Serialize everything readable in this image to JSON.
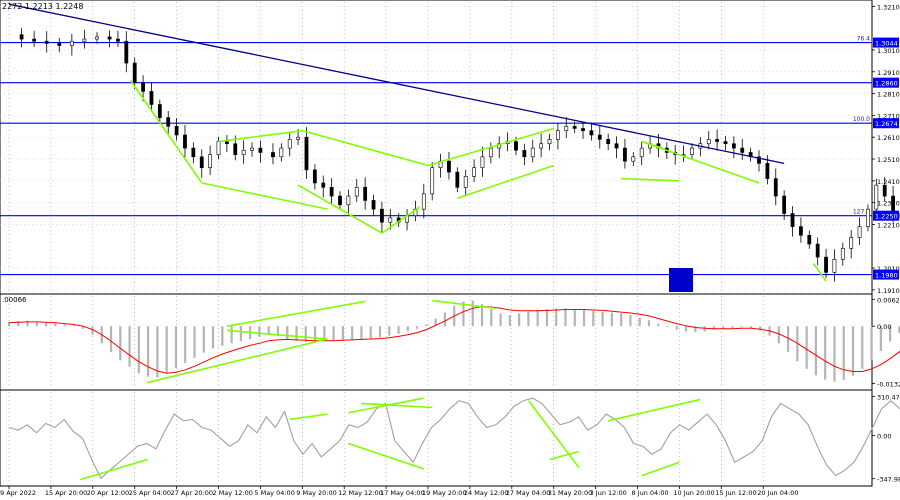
{
  "header": {
    "ohlc_text": "2272 1.2213 1.2248"
  },
  "price_axis": {
    "ticks": [
      "1.3210",
      "1.3010",
      "1.2910",
      "1.2810",
      "1.2710",
      "1.2610",
      "1.2510",
      "1.2410",
      "1.2310",
      "1.2210",
      "1.2010",
      "1.1910"
    ],
    "level_badges": [
      "1.3044",
      "1.2860",
      "1.2674",
      "1.2250",
      "1.1980"
    ]
  },
  "macd_axis": {
    "ticks": [
      "0.00628",
      "0.00",
      "-0.01323"
    ],
    "header": ".00066"
  },
  "cci_axis": {
    "ticks": [
      "310.4756",
      "0.00",
      "-347.9814"
    ]
  },
  "time_labels": [
    "9 Apr 2022",
    "15 Apr 20:00",
    "20 Apr 12:00",
    "25 Apr 04:00",
    "27 Apr 20:00",
    "2 May 12:00",
    "5 May 04:00",
    "9 May 20:00",
    "12 May 12:00",
    "17 May 04:00",
    "19 May 20:00",
    "24 May 12:00",
    "27 May 04:00",
    "31 May 20:00",
    "3 Jun 12:00",
    "8 Jun 04:00",
    "10 Jun 20:00",
    "15 Jun 12:00",
    "20 Jun 04:00"
  ],
  "colors": {
    "level": "#0000ff",
    "trend": "#00008b",
    "divergence": "#7fff00",
    "candle": "#000000",
    "histogram": "#b4b4b4",
    "signal": "#ff0000",
    "cci": "#a0a0a0",
    "marker": "#0000cc"
  },
  "chart_data": [
    {
      "type": "candlestick",
      "name": "price",
      "x_labels_ref": "time_labels",
      "ylim": [
        1.19,
        1.323
      ],
      "horizontal_levels": [
        {
          "value": 1.3044,
          "label": "76.4"
        },
        {
          "value": 1.286,
          "label": ""
        },
        {
          "value": 1.2674,
          "label": "100.0"
        },
        {
          "value": 1.225,
          "label": "127.2"
        },
        {
          "value": 1.198,
          "label": ""
        }
      ],
      "trendline": {
        "from": [
          0,
          1.322
        ],
        "to": [
          18.5,
          1.249
        ]
      },
      "closes": [
        [
          0.0,
          1.308
        ],
        [
          0.3,
          1.306
        ],
        [
          0.6,
          1.305
        ],
        [
          0.9,
          1.304
        ],
        [
          1.2,
          1.303
        ],
        [
          1.5,
          1.305
        ],
        [
          1.8,
          1.306
        ],
        [
          2.1,
          1.307
        ],
        [
          2.4,
          1.306
        ],
        [
          2.6,
          1.305
        ],
        [
          2.8,
          1.295
        ],
        [
          3.0,
          1.286
        ],
        [
          3.2,
          1.282
        ],
        [
          3.4,
          1.276
        ],
        [
          3.6,
          1.27
        ],
        [
          3.8,
          1.266
        ],
        [
          4.0,
          1.262
        ],
        [
          4.2,
          1.256
        ],
        [
          4.4,
          1.252
        ],
        [
          4.6,
          1.247
        ],
        [
          4.8,
          1.253
        ],
        [
          5.0,
          1.259
        ],
        [
          5.2,
          1.258
        ],
        [
          5.4,
          1.253
        ],
        [
          5.6,
          1.255
        ],
        [
          5.8,
          1.256
        ],
        [
          6.0,
          1.254
        ],
        [
          6.3,
          1.252
        ],
        [
          6.5,
          1.256
        ],
        [
          6.7,
          1.26
        ],
        [
          6.9,
          1.261
        ],
        [
          7.1,
          1.246
        ],
        [
          7.3,
          1.24
        ],
        [
          7.5,
          1.238
        ],
        [
          7.7,
          1.234
        ],
        [
          7.9,
          1.23
        ],
        [
          8.1,
          1.234
        ],
        [
          8.3,
          1.238
        ],
        [
          8.5,
          1.232
        ],
        [
          8.7,
          1.228
        ],
        [
          8.9,
          1.222
        ],
        [
          9.1,
          1.224
        ],
        [
          9.3,
          1.222
        ],
        [
          9.5,
          1.225
        ],
        [
          9.7,
          1.228
        ],
        [
          9.9,
          1.235
        ],
        [
          10.1,
          1.247
        ],
        [
          10.3,
          1.25
        ],
        [
          10.5,
          1.245
        ],
        [
          10.7,
          1.238
        ],
        [
          10.9,
          1.243
        ],
        [
          11.1,
          1.247
        ],
        [
          11.3,
          1.252
        ],
        [
          11.5,
          1.256
        ],
        [
          11.7,
          1.258
        ],
        [
          11.9,
          1.259
        ],
        [
          12.1,
          1.255
        ],
        [
          12.3,
          1.252
        ],
        [
          12.5,
          1.256
        ],
        [
          12.7,
          1.258
        ],
        [
          12.9,
          1.26
        ],
        [
          13.1,
          1.264
        ],
        [
          13.3,
          1.266
        ],
        [
          13.5,
          1.265
        ],
        [
          13.7,
          1.264
        ],
        [
          13.9,
          1.262
        ],
        [
          14.1,
          1.26
        ],
        [
          14.3,
          1.258
        ],
        [
          14.5,
          1.256
        ],
        [
          14.7,
          1.25
        ],
        [
          14.9,
          1.252
        ],
        [
          15.1,
          1.256
        ],
        [
          15.3,
          1.258
        ],
        [
          15.5,
          1.256
        ],
        [
          15.7,
          1.254
        ],
        [
          15.9,
          1.253
        ],
        [
          16.1,
          1.253
        ],
        [
          16.3,
          1.256
        ],
        [
          16.5,
          1.258
        ],
        [
          16.7,
          1.26
        ],
        [
          16.9,
          1.259
        ],
        [
          17.1,
          1.258
        ],
        [
          17.3,
          1.256
        ],
        [
          17.5,
          1.254
        ],
        [
          17.7,
          1.252
        ],
        [
          17.9,
          1.249
        ],
        [
          18.1,
          1.242
        ],
        [
          18.3,
          1.234
        ],
        [
          18.5,
          1.226
        ],
        [
          18.7,
          1.22
        ],
        [
          18.9,
          1.216
        ],
        [
          19.1,
          1.212
        ],
        [
          19.3,
          1.206
        ],
        [
          19.5,
          1.199
        ],
        [
          19.7,
          1.205
        ],
        [
          19.9,
          1.21
        ],
        [
          20.1,
          1.215
        ],
        [
          20.3,
          1.22
        ],
        [
          20.5,
          1.228
        ],
        [
          20.7,
          1.239
        ],
        [
          20.9,
          1.234
        ],
        [
          21.1,
          1.226
        ],
        [
          21.3,
          1.224
        ],
        [
          21.5,
          1.226
        ],
        [
          21.7,
          1.228
        ],
        [
          21.9,
          1.227
        ],
        [
          22.1,
          1.229
        ],
        [
          22.3,
          1.23
        ],
        [
          22.5,
          1.227
        ],
        [
          22.7,
          1.224
        ]
      ]
    },
    {
      "type": "histogram",
      "name": "macd",
      "ylim": [
        -0.014,
        0.0066
      ],
      "values": [
        0.001,
        0.0012,
        0.0013,
        0.0011,
        0.0008,
        0.0006,
        0.0004,
        0.0002,
        -0.0006,
        -0.002,
        -0.004,
        -0.006,
        -0.008,
        -0.0095,
        -0.011,
        -0.0118,
        -0.012,
        -0.011,
        -0.0098,
        -0.0086,
        -0.0074,
        -0.0062,
        -0.0052,
        -0.0046,
        -0.004,
        -0.0035,
        -0.003,
        -0.0025,
        -0.002,
        -0.0024,
        -0.003,
        -0.0034,
        -0.0036,
        -0.0035,
        -0.0034,
        -0.0033,
        -0.0032,
        -0.0031,
        -0.003,
        -0.0028,
        -0.0026,
        -0.0022,
        -0.0018,
        -0.0012,
        -0.0006,
        0.0004,
        0.0018,
        0.0032,
        0.0048,
        0.0058,
        0.006,
        0.0052,
        0.004,
        0.003,
        0.0026,
        0.003,
        0.0034,
        0.0038,
        0.004,
        0.0041,
        0.0042,
        0.004,
        0.0038,
        0.0036,
        0.0034,
        0.0032,
        0.003,
        0.0026,
        0.002,
        0.0014,
        0.0006,
        -0.0002,
        -0.0008,
        -0.0012,
        -0.0014,
        -0.0012,
        -0.0008,
        -0.0006,
        -0.0004,
        -0.0002,
        -0.0004,
        -0.001,
        -0.0022,
        -0.004,
        -0.006,
        -0.0082,
        -0.01,
        -0.0115,
        -0.0125,
        -0.013,
        -0.0126,
        -0.0116,
        -0.01,
        -0.008,
        -0.0058,
        -0.0036,
        -0.0016,
        0.0004,
        0.0014,
        0.0018,
        0.002,
        0.002,
        0.0019,
        0.0018
      ],
      "signal": [
        0.0008,
        0.0009,
        0.001,
        0.001,
        0.0009,
        0.0008,
        0.0006,
        0.0004,
        0.0,
        -0.0008,
        -0.002,
        -0.0035,
        -0.0052,
        -0.0068,
        -0.0083,
        -0.0095,
        -0.0105,
        -0.011,
        -0.0108,
        -0.0102,
        -0.0094,
        -0.0084,
        -0.0074,
        -0.0065,
        -0.0058,
        -0.0051,
        -0.0045,
        -0.004,
        -0.0034,
        -0.0032,
        -0.0031,
        -0.0032,
        -0.0033,
        -0.0034,
        -0.0034,
        -0.0034,
        -0.0033,
        -0.0032,
        -0.0031,
        -0.003,
        -0.0029,
        -0.0027,
        -0.0024,
        -0.002,
        -0.0015,
        -0.0008,
        0.0002,
        0.0012,
        0.0024,
        0.0034,
        0.0042,
        0.0046,
        0.0045,
        0.0042,
        0.0038,
        0.0036,
        0.0036,
        0.0036,
        0.0037,
        0.0038,
        0.0039,
        0.0039,
        0.0039,
        0.0038,
        0.0037,
        0.0035,
        0.0033,
        0.0031,
        0.0028,
        0.0024,
        0.0018,
        0.0012,
        0.0006,
        0.0001,
        -0.0003,
        -0.0005,
        -0.0006,
        -0.0006,
        -0.0006,
        -0.0005,
        -0.0005,
        -0.0007,
        -0.0011,
        -0.0018,
        -0.0028,
        -0.004,
        -0.0054,
        -0.0068,
        -0.0082,
        -0.0094,
        -0.0102,
        -0.0106,
        -0.0106,
        -0.01,
        -0.009,
        -0.0076,
        -0.006,
        -0.0042,
        -0.0026,
        -0.0012,
        -0.0002,
        0.0006,
        0.001,
        0.0012
      ]
    },
    {
      "type": "line",
      "name": "cci",
      "ylim": [
        -347.9814,
        310.4756
      ],
      "values": [
        60,
        40,
        80,
        20,
        90,
        60,
        120,
        30,
        -20,
        -180,
        -320,
        -260,
        -200,
        -140,
        -80,
        -60,
        -100,
        40,
        160,
        110,
        120,
        60,
        40,
        -20,
        -80,
        -40,
        80,
        20,
        140,
        60,
        180,
        -40,
        -140,
        -60,
        -160,
        -100,
        -40,
        80,
        60,
        100,
        200,
        240,
        -40,
        -120,
        -200,
        -60,
        60,
        120,
        200,
        260,
        240,
        140,
        60,
        80,
        140,
        220,
        260,
        280,
        240,
        160,
        80,
        100,
        140,
        40,
        80,
        160,
        120,
        60,
        -60,
        -80,
        -140,
        -100,
        20,
        80,
        40,
        100,
        160,
        80,
        -40,
        -200,
        -160,
        -120,
        -40,
        140,
        240,
        200,
        160,
        80,
        -80,
        -220,
        -300,
        -260,
        -200,
        -80,
        60,
        200,
        260,
        200,
        120,
        40,
        0,
        60,
        100,
        -200,
        20
      ]
    }
  ]
}
